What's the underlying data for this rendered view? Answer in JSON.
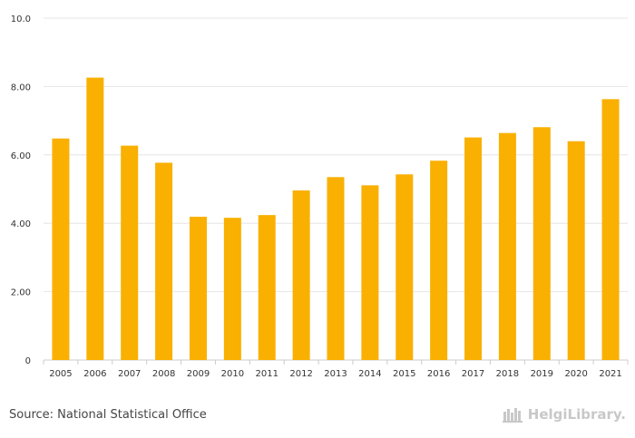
{
  "chart_data": {
    "type": "bar",
    "title": "",
    "xlabel": "",
    "ylabel": "",
    "categories": [
      "2005",
      "2006",
      "2007",
      "2008",
      "2009",
      "2010",
      "2011",
      "2012",
      "2013",
      "2014",
      "2015",
      "2016",
      "2017",
      "2018",
      "2019",
      "2020",
      "2021"
    ],
    "values": [
      6.48,
      8.26,
      6.27,
      5.77,
      4.19,
      4.16,
      4.24,
      4.96,
      5.35,
      5.11,
      5.43,
      5.83,
      6.51,
      6.64,
      6.81,
      6.4,
      7.63
    ],
    "ylim": [
      0,
      10
    ],
    "yticks": [
      0,
      2,
      4,
      6,
      8,
      10
    ],
    "ytick_labels": [
      "0",
      "2.00",
      "4.00",
      "6.00",
      "8.00",
      "10.0"
    ],
    "grid": true,
    "bar_color": "#F9B000"
  },
  "footer": {
    "source": "Source: National Statistical Office",
    "logo_text": "HelgiLibrary."
  },
  "colors": {
    "grid": "#e6e6e6",
    "axis": "#cccccc",
    "logo": "#c8c8c8"
  }
}
